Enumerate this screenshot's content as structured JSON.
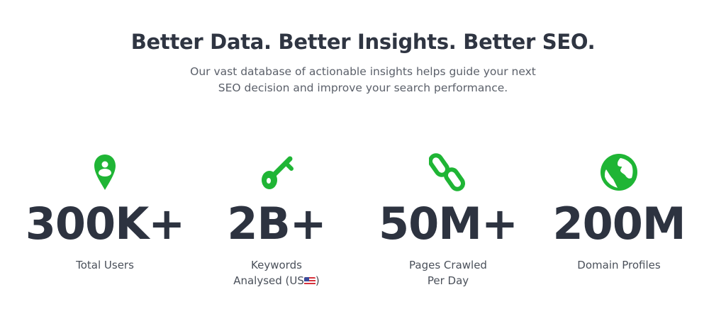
{
  "header": {
    "title": "Better Data. Better Insights. Better SEO.",
    "subtitle": "Our vast database of actionable insights helps guide your next SEO decision and improve your search performance."
  },
  "accent_color": "#1fb535",
  "stats": [
    {
      "icon": "user-pin-icon",
      "value": "300K+",
      "label": "Total Users"
    },
    {
      "icon": "key-icon",
      "value": "2B+",
      "label_line1": "Keywords",
      "label_line2": "Analysed (US",
      "flag": "us-flag-icon",
      "label_end": ")"
    },
    {
      "icon": "link-icon",
      "value": "50M+",
      "label_line1": "Pages Crawled",
      "label_line2": "Per Day"
    },
    {
      "icon": "globe-icon",
      "value": "200M",
      "label": "Domain Profiles"
    }
  ]
}
